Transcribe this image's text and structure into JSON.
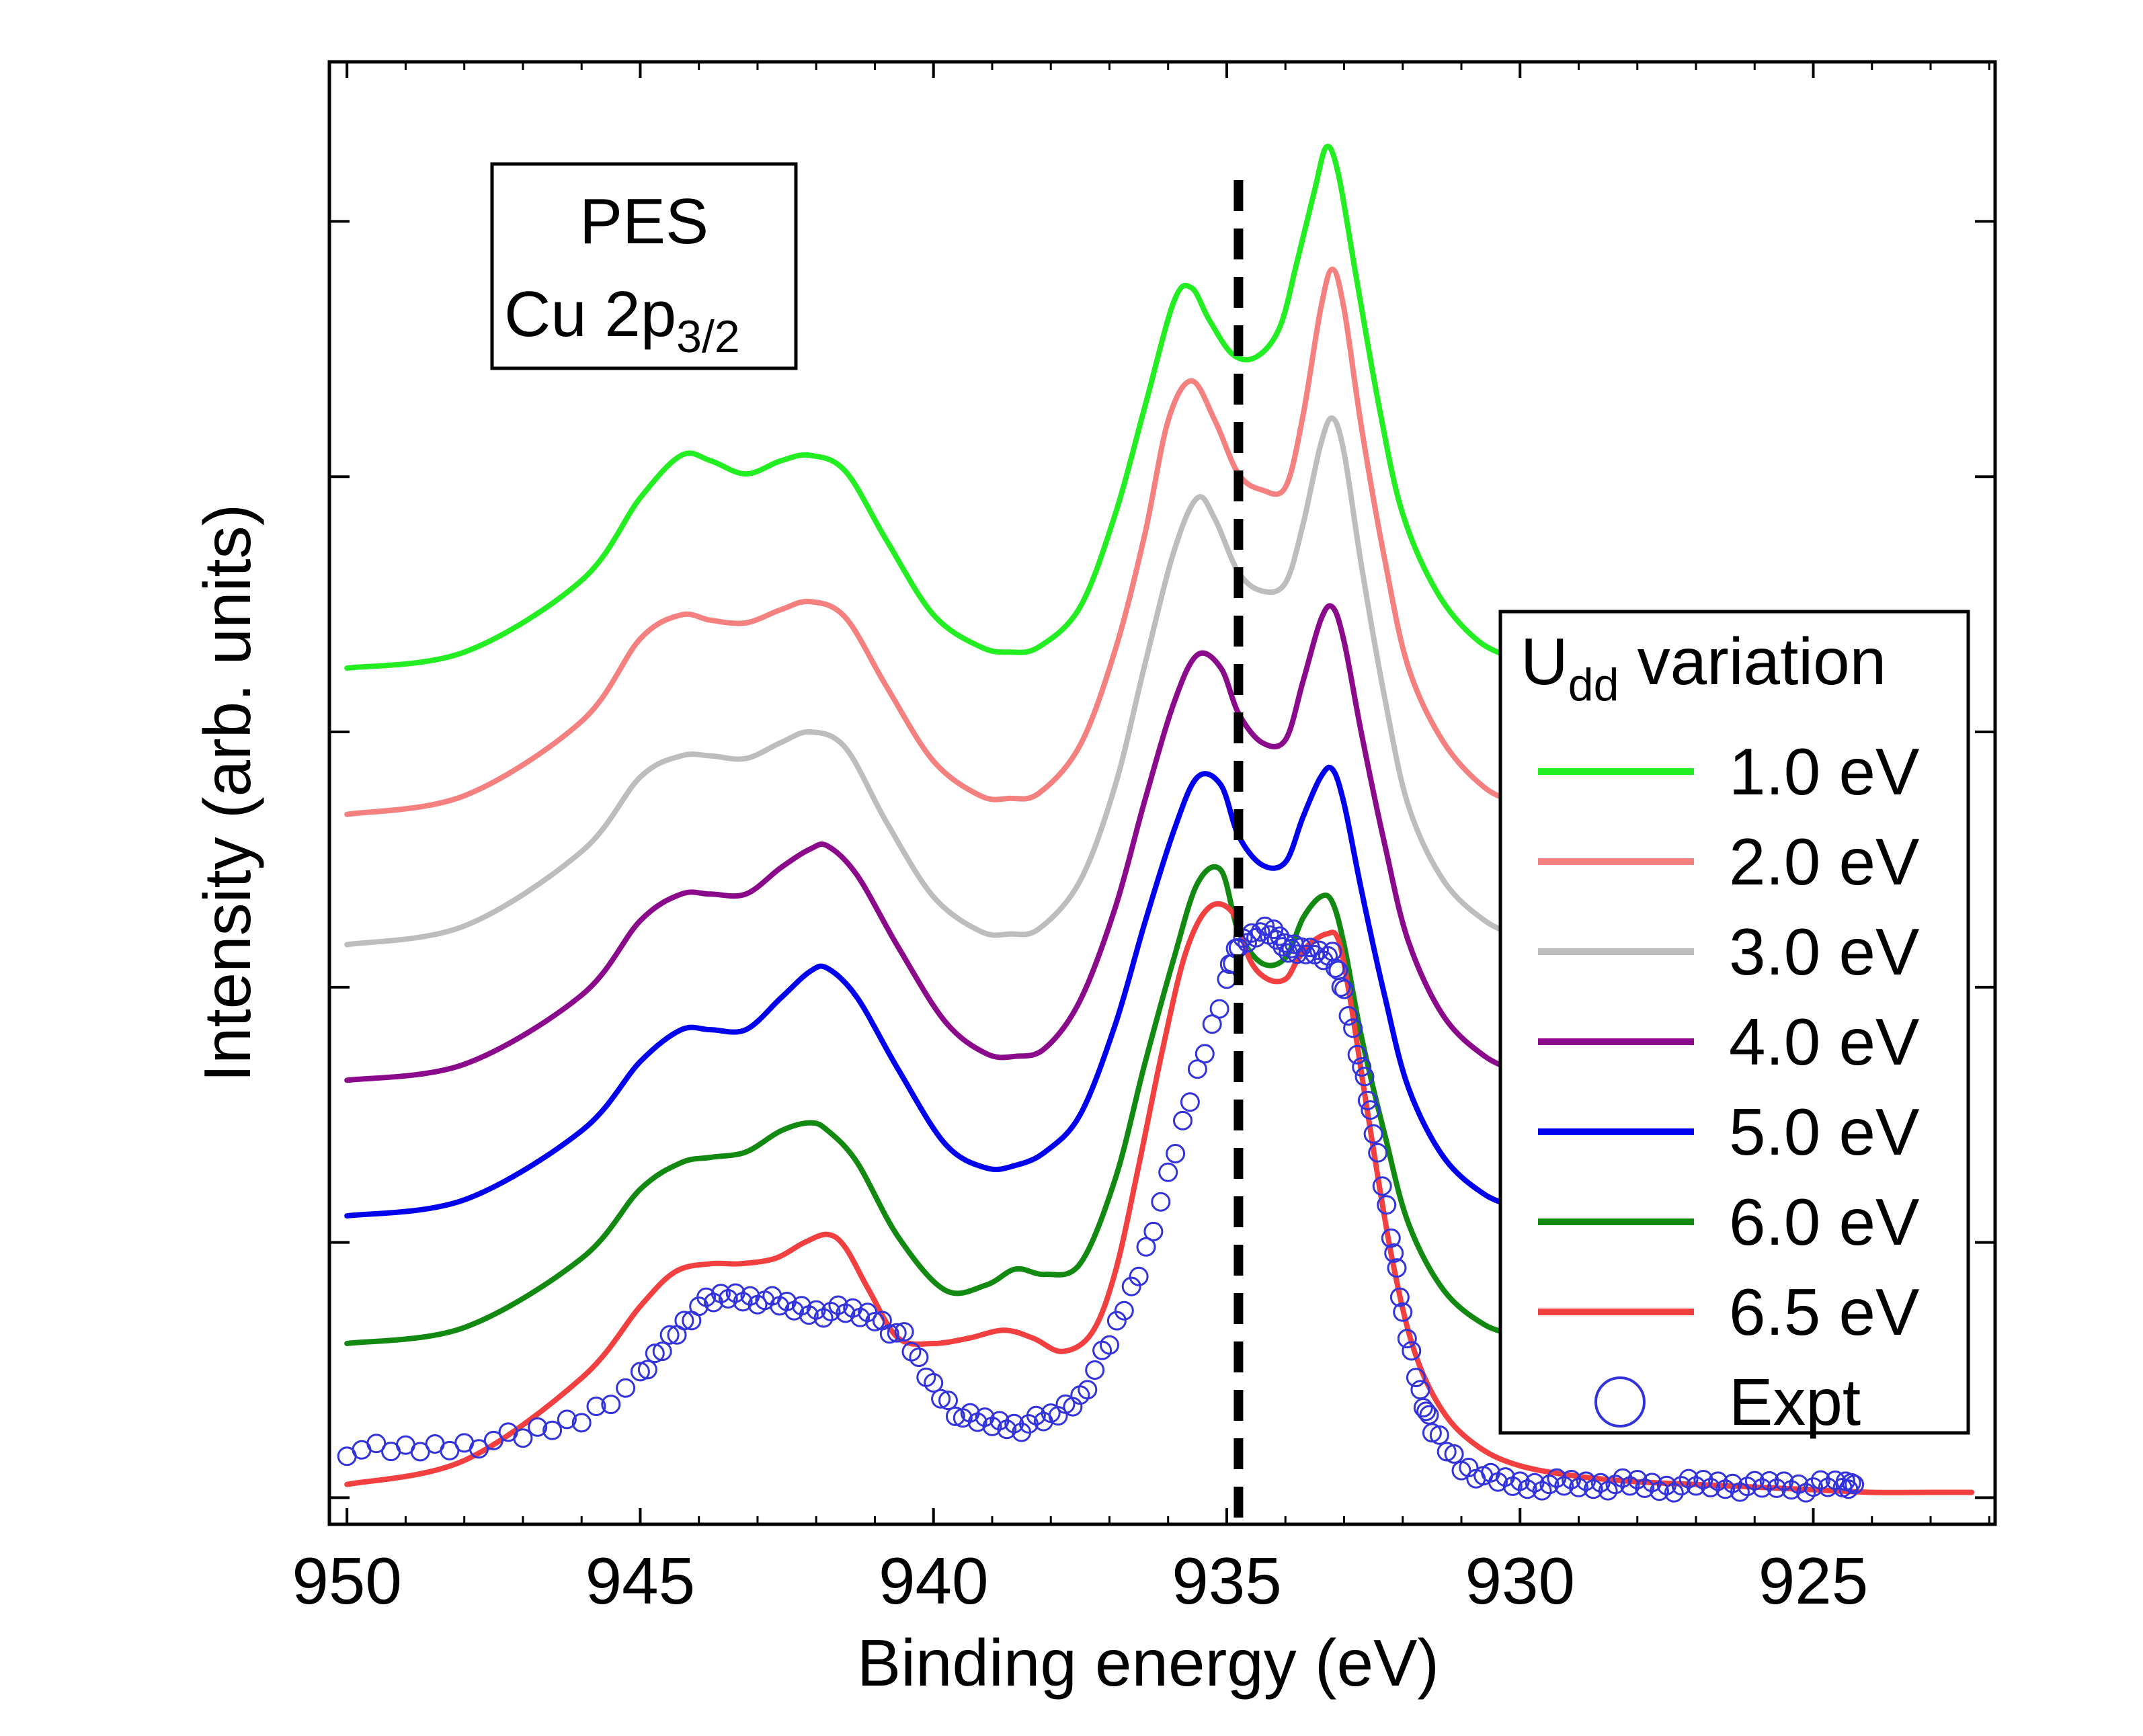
{
  "chart_data": {
    "type": "line",
    "title": "",
    "xlabel": "Binding energy (eV)",
    "ylabel": "Intensity (arb. units)",
    "xlim": [
      950.3,
      921.9
    ],
    "ylim": [
      -0.1,
      5.4
    ],
    "x_reversed": true,
    "x_ticks": [
      950,
      945,
      940,
      935,
      930,
      925
    ],
    "x_tick_labels": [
      "950",
      "945",
      "940",
      "935",
      "930",
      "925"
    ],
    "y_tick_labels_shown": false,
    "reference_line": {
      "x": 934.8,
      "style": "dashed",
      "color": "#000000"
    },
    "annotation": {
      "line1": "PES",
      "line2_main": "Cu 2p",
      "line2_sub": "3/2"
    },
    "legend": {
      "title_main": "U",
      "title_sub": "dd",
      "title_rest": " variation",
      "position": "right"
    },
    "series": [
      {
        "name": "1.0 eV",
        "color": "#22ee22",
        "offset": 3.1,
        "x": [
          950,
          948,
          946,
          945,
          944.3,
          943.8,
          943.2,
          942.6,
          942.1,
          941.5,
          940.8,
          940,
          939.2,
          938.7,
          938.2,
          937.5,
          936.9,
          936.4,
          935.9,
          935.6,
          935.3,
          934.9,
          934.5,
          934.1,
          933.8,
          933.5,
          933.3,
          933.1,
          932.8,
          932.4,
          932,
          931.4,
          930.7,
          930
        ],
        "y": [
          0.02,
          0.08,
          0.35,
          0.66,
          0.82,
          0.8,
          0.75,
          0.8,
          0.82,
          0.76,
          0.5,
          0.22,
          0.1,
          0.08,
          0.1,
          0.25,
          0.6,
          1.0,
          1.4,
          1.45,
          1.33,
          1.2,
          1.19,
          1.3,
          1.55,
          1.82,
          1.98,
          1.88,
          1.5,
          1.0,
          0.6,
          0.3,
          0.12,
          0.05
        ]
      },
      {
        "name": "2.0 eV",
        "color": "#f48080",
        "offset": 2.57,
        "x": [
          950,
          948,
          946,
          945,
          944.3,
          943.8,
          943.2,
          942.6,
          942.1,
          941.5,
          940.8,
          940,
          939.2,
          938.7,
          938.2,
          937.5,
          936.9,
          936.4,
          936,
          935.6,
          935.2,
          934.8,
          934.4,
          934,
          933.7,
          933.4,
          933.2,
          933,
          932.7,
          932.3,
          931.9,
          931.3,
          930.6,
          930
        ],
        "y": [
          0.0,
          0.07,
          0.35,
          0.66,
          0.75,
          0.73,
          0.72,
          0.77,
          0.8,
          0.74,
          0.48,
          0.2,
          0.07,
          0.06,
          0.08,
          0.26,
          0.62,
          1.05,
          1.48,
          1.63,
          1.48,
          1.28,
          1.22,
          1.23,
          1.5,
          1.9,
          2.05,
          1.9,
          1.45,
          0.95,
          0.55,
          0.27,
          0.1,
          0.04
        ]
      },
      {
        "name": "3.0 eV",
        "color": "#bdbdbd",
        "offset": 2.08,
        "x": [
          950,
          948,
          946,
          945,
          944.3,
          943.8,
          943.2,
          942.6,
          942.1,
          941.5,
          940.8,
          940,
          939.2,
          938.7,
          938.2,
          937.5,
          936.9,
          936.4,
          935.9,
          935.5,
          935.2,
          934.8,
          934.4,
          934,
          933.7,
          933.4,
          933.2,
          933,
          932.7,
          932.3,
          931.9,
          931.3,
          930.6,
          930
        ],
        "y": [
          0.0,
          0.07,
          0.35,
          0.63,
          0.71,
          0.71,
          0.7,
          0.76,
          0.8,
          0.74,
          0.46,
          0.18,
          0.05,
          0.04,
          0.06,
          0.24,
          0.6,
          1.05,
          1.48,
          1.68,
          1.6,
          1.4,
          1.33,
          1.36,
          1.58,
          1.88,
          1.98,
          1.85,
          1.42,
          0.92,
          0.52,
          0.24,
          0.09,
          0.03
        ]
      },
      {
        "name": "4.0 eV",
        "color": "#8b0a8b",
        "offset": 1.57,
        "x": [
          950,
          948,
          946,
          945,
          944.3,
          943.8,
          943.2,
          942.6,
          942.1,
          941.8,
          941.3,
          940.6,
          939.8,
          939.1,
          938.6,
          938.1,
          937.5,
          936.9,
          936.4,
          935.9,
          935.5,
          935.1,
          934.8,
          934.4,
          934,
          933.7,
          933.4,
          933.2,
          933,
          932.7,
          932.3,
          931.9,
          931.3,
          930.6,
          930
        ],
        "y": [
          0.0,
          0.06,
          0.32,
          0.6,
          0.7,
          0.7,
          0.7,
          0.8,
          0.87,
          0.88,
          0.77,
          0.5,
          0.22,
          0.1,
          0.09,
          0.12,
          0.3,
          0.65,
          1.05,
          1.42,
          1.6,
          1.55,
          1.38,
          1.27,
          1.28,
          1.5,
          1.73,
          1.78,
          1.65,
          1.3,
          0.88,
          0.52,
          0.24,
          0.09,
          0.03
        ]
      },
      {
        "name": "5.0 eV",
        "color": "#0000ee",
        "offset": 1.06,
        "x": [
          950,
          948,
          946,
          945,
          944.3,
          943.8,
          943.2,
          942.6,
          942.1,
          941.8,
          941.3,
          940.6,
          939.8,
          939.1,
          938.6,
          938.1,
          937.5,
          936.9,
          936.4,
          935.9,
          935.5,
          935.1,
          934.8,
          934.4,
          934,
          933.7,
          933.4,
          933.2,
          933,
          932.7,
          932.3,
          931.9,
          931.3,
          930.6,
          930
        ],
        "y": [
          0.0,
          0.06,
          0.32,
          0.58,
          0.7,
          0.7,
          0.7,
          0.82,
          0.92,
          0.93,
          0.82,
          0.55,
          0.27,
          0.18,
          0.19,
          0.24,
          0.38,
          0.72,
          1.1,
          1.45,
          1.65,
          1.62,
          1.43,
          1.32,
          1.33,
          1.5,
          1.65,
          1.68,
          1.55,
          1.22,
          0.82,
          0.48,
          0.22,
          0.08,
          0.03
        ]
      },
      {
        "name": "6.0 eV",
        "color": "#128a12",
        "offset": 0.58,
        "x": [
          950,
          948,
          946,
          945,
          944.3,
          943.8,
          943.2,
          942.6,
          942.1,
          941.8,
          941.3,
          940.6,
          939.8,
          939.1,
          938.6,
          938.1,
          937.5,
          936.9,
          936.4,
          935.9,
          935.5,
          935.1,
          934.8,
          934.4,
          934,
          933.7,
          933.4,
          933.2,
          933,
          932.7,
          932.3,
          931.9,
          931.3,
          930.6,
          930
        ],
        "y": [
          0.0,
          0.06,
          0.32,
          0.58,
          0.68,
          0.7,
          0.72,
          0.8,
          0.83,
          0.8,
          0.68,
          0.4,
          0.2,
          0.22,
          0.28,
          0.26,
          0.3,
          0.62,
          1.05,
          1.45,
          1.73,
          1.78,
          1.55,
          1.43,
          1.45,
          1.6,
          1.68,
          1.66,
          1.5,
          1.15,
          0.78,
          0.45,
          0.2,
          0.07,
          0.03
        ]
      },
      {
        "name": "6.5 eV",
        "color": "#f24040",
        "offset": 0.0,
        "x": [
          950,
          948,
          946,
          945,
          944.4,
          943.8,
          943.3,
          942.7,
          942.2,
          941.8,
          941.5,
          941.1,
          940.6,
          940,
          939.4,
          938.8,
          938.3,
          937.8,
          937.3,
          936.9,
          936.5,
          936.1,
          935.7,
          935.3,
          934.9,
          934.6,
          934.3,
          934,
          933.8,
          933.6,
          933.3,
          933.1,
          932.9,
          932.6,
          932.2,
          931.8,
          931.3,
          930.7,
          930,
          929,
          928,
          927,
          926,
          925,
          924,
          923,
          922.3
        ],
        "y": [
          0.05,
          0.14,
          0.45,
          0.72,
          0.85,
          0.88,
          0.88,
          0.9,
          0.96,
          0.99,
          0.94,
          0.78,
          0.6,
          0.58,
          0.6,
          0.63,
          0.6,
          0.55,
          0.62,
          0.85,
          1.25,
          1.68,
          2.05,
          2.22,
          2.2,
          2.02,
          1.95,
          1.95,
          2.02,
          2.08,
          2.12,
          2.1,
          1.88,
          1.45,
          0.92,
          0.55,
          0.32,
          0.19,
          0.12,
          0.08,
          0.06,
          0.05,
          0.04,
          0.03,
          0.02,
          0.02,
          0.02
        ]
      },
      {
        "name": "Expt",
        "color": "#3333dd",
        "marker": "circle-open",
        "x": [
          950,
          949,
          948,
          947,
          946,
          945,
          944.5,
          944,
          943.5,
          943,
          942.5,
          942,
          941.5,
          941,
          940.5,
          940,
          939.5,
          939,
          938.5,
          938,
          937.5,
          937,
          936.5,
          936,
          935.5,
          935,
          934.8,
          934.5,
          934.2,
          934,
          933.8,
          933.5,
          933.2,
          933,
          932.7,
          932.5,
          932.2,
          932,
          931.7,
          931.5,
          931,
          930.5,
          930,
          929.5,
          929,
          928.5,
          928,
          927.5,
          927,
          926.5,
          926,
          925.5,
          925,
          924.5,
          924.3
        ],
        "y": [
          0.18,
          0.18,
          0.2,
          0.23,
          0.3,
          0.45,
          0.6,
          0.72,
          0.76,
          0.75,
          0.72,
          0.7,
          0.7,
          0.68,
          0.6,
          0.42,
          0.3,
          0.28,
          0.27,
          0.3,
          0.38,
          0.58,
          0.85,
          1.2,
          1.6,
          1.95,
          2.08,
          2.13,
          2.12,
          2.08,
          2.05,
          2.06,
          2.03,
          1.9,
          1.62,
          1.38,
          1.0,
          0.68,
          0.4,
          0.25,
          0.12,
          0.07,
          0.05,
          0.05,
          0.05,
          0.05,
          0.05,
          0.04,
          0.05,
          0.05,
          0.04,
          0.05,
          0.04,
          0.05,
          0.05
        ]
      }
    ]
  }
}
